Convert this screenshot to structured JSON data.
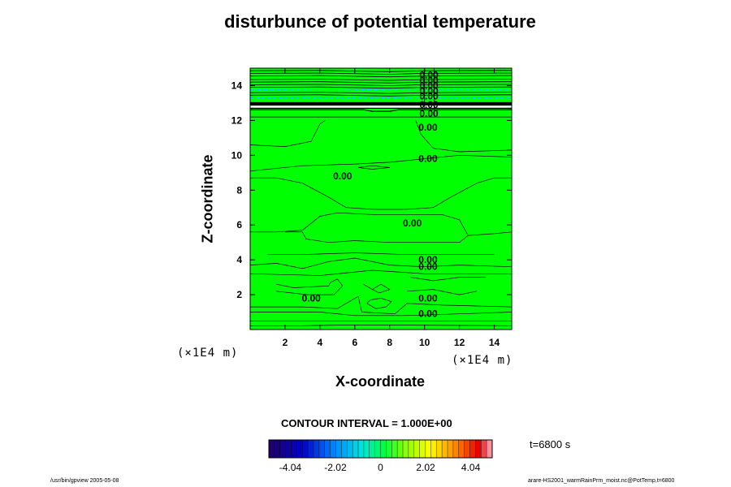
{
  "chart_data": {
    "type": "contour",
    "title": "disturbunce of potential temperature",
    "xlabel": "X-coordinate",
    "ylabel": "Z-coordinate",
    "x_unit": "(×1E4 m)",
    "y_unit": "(×1E4 m)",
    "xlim": [
      0,
      15
    ],
    "ylim": [
      0,
      15
    ],
    "x_ticks": [
      2,
      4,
      6,
      8,
      10,
      12,
      14
    ],
    "y_ticks": [
      2,
      4,
      6,
      8,
      10,
      12,
      14
    ],
    "contour_interval": "CONTOUR INTERVAL = 1.000E+00",
    "contour_labels": [
      {
        "text": "0.00",
        "x": 10.25,
        "z": 14.6
      },
      {
        "text": "0.00",
        "x": 10.25,
        "z": 14.3
      },
      {
        "text": "0.00",
        "x": 10.25,
        "z": 14.0
      },
      {
        "text": "0.00",
        "x": 10.25,
        "z": 13.7
      },
      {
        "text": "0.00",
        "x": 10.25,
        "z": 13.4
      },
      {
        "text": "0.00",
        "x": 10.25,
        "z": 12.9
      },
      {
        "text": "0.00",
        "x": 10.25,
        "z": 12.4
      },
      {
        "text": "0.00",
        "x": 10.2,
        "z": 11.6
      },
      {
        "text": "0.00",
        "x": 10.2,
        "z": 9.8
      },
      {
        "text": "0.00",
        "x": 5.3,
        "z": 8.8
      },
      {
        "text": "0.00",
        "x": 9.3,
        "z": 6.1
      },
      {
        "text": "0.00",
        "x": 10.2,
        "z": 4.0
      },
      {
        "text": "0.00",
        "x": 10.2,
        "z": 3.6
      },
      {
        "text": "0.00",
        "x": 3.5,
        "z": 1.8
      },
      {
        "text": "0.00",
        "x": 10.2,
        "z": 1.8
      },
      {
        "text": "0.00",
        "x": 10.2,
        "z": 0.9
      }
    ],
    "colorbar": {
      "min": -5.0,
      "max": 5.0,
      "ticks": [
        -4.04,
        -2.02,
        0,
        2.02,
        4.04
      ],
      "tick_labels": [
        "-4.04",
        "-2.02",
        "0",
        "2.02",
        "4.04"
      ]
    },
    "time_label": "t=6800 s",
    "fill_color": "#00ff00"
  },
  "footer_left": "/usr/bin/gpview 2005-05-08",
  "footer_right": "arare-HS2001_warmRainPrm_moist.nc@PotTemp,t=6800"
}
